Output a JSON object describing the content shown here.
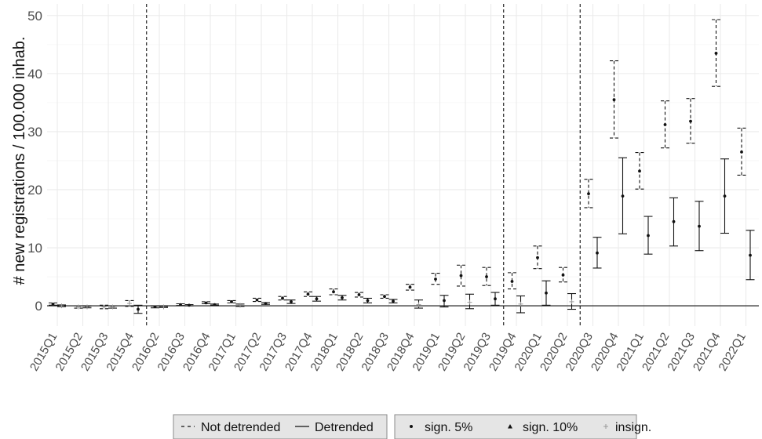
{
  "chart_data": {
    "type": "errorbar",
    "title": "",
    "xlabel": "",
    "ylabel": "# new registrations / 100.000 inhab.",
    "ylim": [
      -3.5,
      52
    ],
    "y_ticks": [
      0,
      10,
      20,
      30,
      40,
      50
    ],
    "grid": true,
    "categories": [
      "2015Q1",
      "2015Q2",
      "2015Q3",
      "2015Q4",
      "2016Q2",
      "2016Q3",
      "2016Q4",
      "2017Q1",
      "2017Q2",
      "2017Q3",
      "2017Q4",
      "2018Q1",
      "2018Q2",
      "2018Q3",
      "2018Q4",
      "2019Q1",
      "2019Q2",
      "2019Q3",
      "2019Q4",
      "2020Q1",
      "2020Q2",
      "2020Q3",
      "2020Q4",
      "2021Q1",
      "2021Q2",
      "2021Q3",
      "2021Q4",
      "2022Q1"
    ],
    "vertical_reference_lines_after": [
      "2015Q4",
      "2019Q3",
      "2020Q2"
    ],
    "series": [
      {
        "name": "Not detrended",
        "line_style": "dashed",
        "points": [
          {
            "x": "2015Q1",
            "y": 0.3,
            "lo": 0.1,
            "hi": 0.5,
            "sig": "5%"
          },
          {
            "x": "2015Q2",
            "y": -0.2,
            "lo": -0.4,
            "hi": 0.0,
            "sig": "insign."
          },
          {
            "x": "2015Q3",
            "y": -0.2,
            "lo": -0.5,
            "hi": 0.1,
            "sig": "insign."
          },
          {
            "x": "2015Q4",
            "y": 0.4,
            "lo": -0.1,
            "hi": 0.9,
            "sig": "insign."
          },
          {
            "x": "2016Q2",
            "y": -0.2,
            "lo": -0.35,
            "hi": -0.05,
            "sig": "5%"
          },
          {
            "x": "2016Q3",
            "y": 0.2,
            "lo": 0.05,
            "hi": 0.35,
            "sig": "5%"
          },
          {
            "x": "2016Q4",
            "y": 0.5,
            "lo": 0.35,
            "hi": 0.7,
            "sig": "5%"
          },
          {
            "x": "2017Q1",
            "y": 0.7,
            "lo": 0.5,
            "hi": 0.9,
            "sig": "5%"
          },
          {
            "x": "2017Q2",
            "y": 1.0,
            "lo": 0.75,
            "hi": 1.3,
            "sig": "5%"
          },
          {
            "x": "2017Q3",
            "y": 1.3,
            "lo": 1.0,
            "hi": 1.6,
            "sig": "5%"
          },
          {
            "x": "2017Q4",
            "y": 2.0,
            "lo": 1.6,
            "hi": 2.4,
            "sig": "5%"
          },
          {
            "x": "2018Q1",
            "y": 2.4,
            "lo": 1.9,
            "hi": 2.9,
            "sig": "5%"
          },
          {
            "x": "2018Q2",
            "y": 1.9,
            "lo": 1.5,
            "hi": 2.3,
            "sig": "5%"
          },
          {
            "x": "2018Q3",
            "y": 1.6,
            "lo": 1.3,
            "hi": 1.9,
            "sig": "5%"
          },
          {
            "x": "2018Q4",
            "y": 3.2,
            "lo": 2.7,
            "hi": 3.7,
            "sig": "5%"
          },
          {
            "x": "2019Q1",
            "y": 4.6,
            "lo": 3.7,
            "hi": 5.6,
            "sig": "5%"
          },
          {
            "x": "2019Q2",
            "y": 5.2,
            "lo": 3.4,
            "hi": 7.0,
            "sig": "5%"
          },
          {
            "x": "2019Q3",
            "y": 5.0,
            "lo": 3.5,
            "hi": 6.6,
            "sig": "5%"
          },
          {
            "x": "2019Q4",
            "y": 4.2,
            "lo": 2.9,
            "hi": 5.7,
            "sig": "5%"
          },
          {
            "x": "2020Q1",
            "y": 8.3,
            "lo": 6.4,
            "hi": 10.3,
            "sig": "5%"
          },
          {
            "x": "2020Q2",
            "y": 5.3,
            "lo": 4.1,
            "hi": 6.6,
            "sig": "5%"
          },
          {
            "x": "2020Q3",
            "y": 19.3,
            "lo": 16.9,
            "hi": 21.8,
            "sig": "5%"
          },
          {
            "x": "2020Q4",
            "y": 35.5,
            "lo": 28.9,
            "hi": 42.2,
            "sig": "5%"
          },
          {
            "x": "2021Q1",
            "y": 23.2,
            "lo": 20.1,
            "hi": 26.4,
            "sig": "5%"
          },
          {
            "x": "2021Q2",
            "y": 31.2,
            "lo": 27.2,
            "hi": 35.3,
            "sig": "5%"
          },
          {
            "x": "2021Q3",
            "y": 31.8,
            "lo": 28.0,
            "hi": 35.7,
            "sig": "5%"
          },
          {
            "x": "2021Q4",
            "y": 43.5,
            "lo": 37.8,
            "hi": 49.3,
            "sig": "5%"
          },
          {
            "x": "2022Q1",
            "y": 26.5,
            "lo": 22.5,
            "hi": 30.6,
            "sig": "5%"
          }
        ]
      },
      {
        "name": "Detrended",
        "line_style": "solid",
        "points": [
          {
            "x": "2015Q1",
            "y": 0.0,
            "lo": -0.15,
            "hi": 0.15,
            "sig": "insign."
          },
          {
            "x": "2015Q2",
            "y": -0.2,
            "lo": -0.35,
            "hi": -0.05,
            "sig": "insign."
          },
          {
            "x": "2015Q3",
            "y": -0.2,
            "lo": -0.4,
            "hi": 0.0,
            "sig": "insign."
          },
          {
            "x": "2015Q4",
            "y": -0.6,
            "lo": -1.3,
            "hi": 0.1,
            "sig": "5%"
          },
          {
            "x": "2016Q2",
            "y": -0.2,
            "lo": -0.3,
            "hi": -0.1,
            "sig": "insign."
          },
          {
            "x": "2016Q3",
            "y": 0.1,
            "lo": 0.0,
            "hi": 0.2,
            "sig": "5%"
          },
          {
            "x": "2016Q4",
            "y": 0.2,
            "lo": 0.1,
            "hi": 0.3,
            "sig": "5%"
          },
          {
            "x": "2017Q1",
            "y": 0.1,
            "lo": -0.1,
            "hi": 0.3,
            "sig": "insign."
          },
          {
            "x": "2017Q2",
            "y": 0.4,
            "lo": 0.25,
            "hi": 0.55,
            "sig": "5%"
          },
          {
            "x": "2017Q3",
            "y": 0.7,
            "lo": 0.4,
            "hi": 1.0,
            "sig": "5%"
          },
          {
            "x": "2017Q4",
            "y": 1.2,
            "lo": 0.8,
            "hi": 1.6,
            "sig": "5%"
          },
          {
            "x": "2018Q1",
            "y": 1.4,
            "lo": 1.0,
            "hi": 1.8,
            "sig": "5%"
          },
          {
            "x": "2018Q2",
            "y": 0.9,
            "lo": 0.5,
            "hi": 1.3,
            "sig": "5%"
          },
          {
            "x": "2018Q3",
            "y": 0.8,
            "lo": 0.5,
            "hi": 1.1,
            "sig": "5%"
          },
          {
            "x": "2018Q4",
            "y": 0.2,
            "lo": -0.4,
            "hi": 1.0,
            "sig": "insign."
          },
          {
            "x": "2019Q1",
            "y": 0.9,
            "lo": -0.2,
            "hi": 1.8,
            "sig": "5%"
          },
          {
            "x": "2019Q2",
            "y": 0.6,
            "lo": -0.5,
            "hi": 2.0,
            "sig": "insign."
          },
          {
            "x": "2019Q3",
            "y": 1.2,
            "lo": 0.1,
            "hi": 2.3,
            "sig": "5%"
          },
          {
            "x": "2019Q4",
            "y": 0.3,
            "lo": -1.2,
            "hi": 1.7,
            "sig": "insign."
          },
          {
            "x": "2020Q1",
            "y": 2.2,
            "lo": 0.1,
            "hi": 4.3,
            "sig": "5%"
          },
          {
            "x": "2020Q2",
            "y": 0.7,
            "lo": -0.6,
            "hi": 2.1,
            "sig": "insign."
          },
          {
            "x": "2020Q3",
            "y": 9.1,
            "lo": 6.5,
            "hi": 11.8,
            "sig": "5%"
          },
          {
            "x": "2020Q4",
            "y": 18.9,
            "lo": 12.4,
            "hi": 25.5,
            "sig": "5%"
          },
          {
            "x": "2021Q1",
            "y": 12.1,
            "lo": 8.9,
            "hi": 15.4,
            "sig": "5%"
          },
          {
            "x": "2021Q2",
            "y": 14.5,
            "lo": 10.3,
            "hi": 18.6,
            "sig": "5%"
          },
          {
            "x": "2021Q3",
            "y": 13.7,
            "lo": 9.5,
            "hi": 18.0,
            "sig": "5%"
          },
          {
            "x": "2021Q4",
            "y": 18.9,
            "lo": 12.5,
            "hi": 25.3,
            "sig": "5%"
          },
          {
            "x": "2022Q1",
            "y": 8.7,
            "lo": 4.5,
            "hi": 13.0,
            "sig": "5%"
          }
        ]
      }
    ],
    "legend": {
      "placement": "bottom",
      "line_type": {
        "not_detrended": "Not detrended",
        "detrended": "Detrended"
      },
      "significance": {
        "sign5": "sign. 5%",
        "sign10": "sign. 10%",
        "insign": "insign."
      }
    }
  }
}
